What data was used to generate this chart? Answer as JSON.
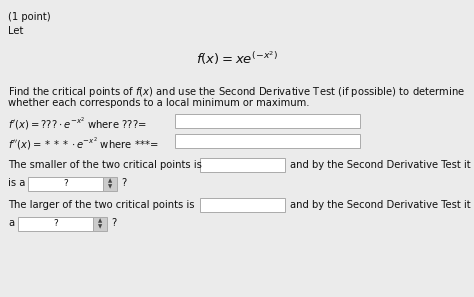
{
  "bg_color": "#ebebeb",
  "text_color": "#111111",
  "title": "(1 point)",
  "let_label": "Let",
  "description_line1": "Find the critical points of $f(x)$ and use the Second Derivative Test (if possible) to determine",
  "description_line2": "whether each corresponds to a local minimum or maximum.",
  "smaller_line1": "The smaller of the two critical points is",
  "smaller_line2": "and by the Second Derivative Test it",
  "isa_line": "is a",
  "larger_line1": "The larger of the two critical points is",
  "larger_line2": "and by the Second Derivative Test it is",
  "a_line": "a",
  "fs_tiny": 6.5,
  "fs_small": 7.2,
  "fs_formula": 9.5,
  "box_edge": "#aaaaaa",
  "box_face": "white",
  "spin_face": "#dddddd"
}
